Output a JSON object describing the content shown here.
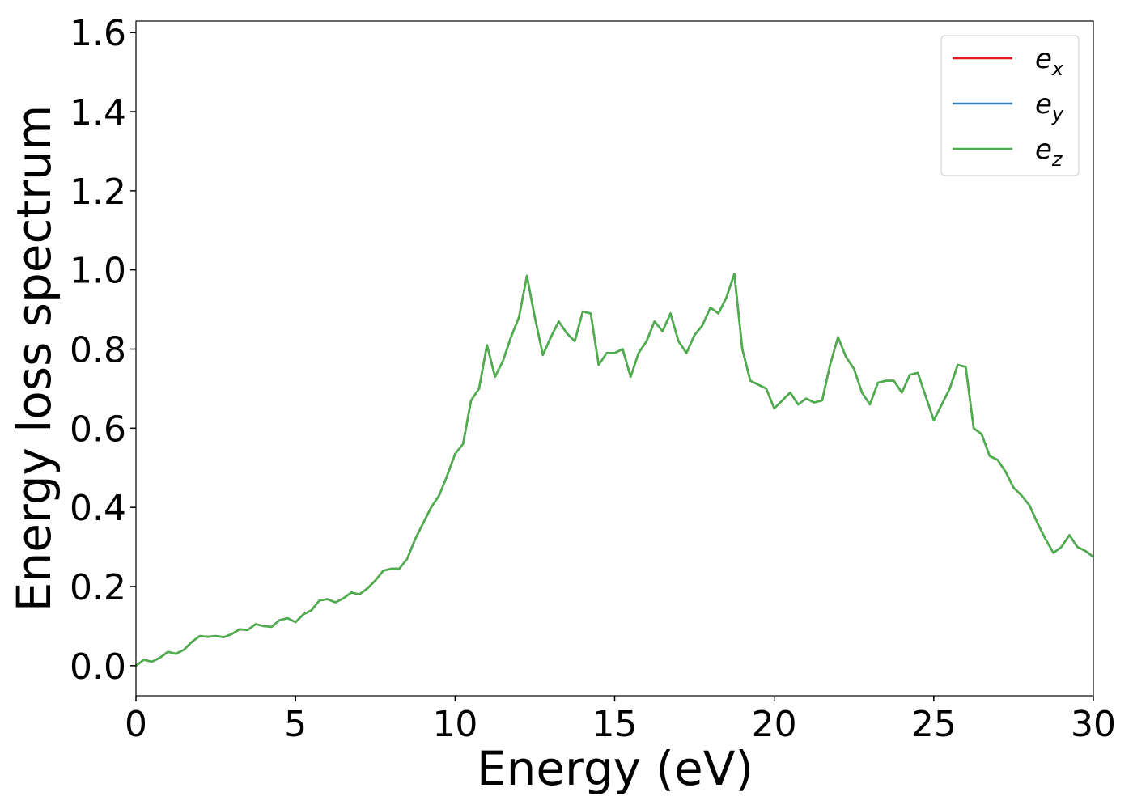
{
  "chart_data": {
    "type": "line",
    "xlabel": "Energy (eV)",
    "ylabel": "Energy loss spectrum",
    "xlim": [
      0,
      30
    ],
    "xticks": [
      0,
      5,
      10,
      15,
      20,
      25,
      30
    ],
    "ylim": [
      -0.076,
      1.629
    ],
    "yticks": [
      {
        "value": 0,
        "label": "0.0"
      },
      {
        "value": 0.2,
        "label": "0.2"
      },
      {
        "value": 0.4,
        "label": "0.4"
      },
      {
        "value": 0.6,
        "label": "0.6"
      },
      {
        "value": 0.8,
        "label": "0.8"
      },
      {
        "value": 1,
        "label": "1.0"
      },
      {
        "value": 1.2,
        "label": "1.2"
      },
      {
        "value": 1.4,
        "label": "1.4"
      },
      {
        "value": 1.6,
        "label": "1.6"
      }
    ],
    "legend": "upper right",
    "x": [
      0,
      0.25,
      0.5,
      0.75,
      1,
      1.25,
      1.5,
      1.75,
      2,
      2.25,
      2.5,
      2.75,
      3,
      3.25,
      3.5,
      3.75,
      4,
      4.25,
      4.5,
      4.75,
      5,
      5.25,
      5.5,
      5.75,
      6,
      6.25,
      6.5,
      6.75,
      7,
      7.25,
      7.5,
      7.75,
      8,
      8.25,
      8.5,
      8.75,
      9,
      9.25,
      9.5,
      9.75,
      10,
      10.25,
      10.5,
      10.75,
      11,
      11.25,
      11.5,
      11.75,
      12,
      12.25,
      12.5,
      12.75,
      13,
      13.25,
      13.5,
      13.75,
      14,
      14.25,
      14.5,
      14.75,
      15,
      15.25,
      15.5,
      15.75,
      16,
      16.25,
      16.5,
      16.75,
      17,
      17.25,
      17.5,
      17.75,
      18,
      18.25,
      18.5,
      18.75,
      19,
      19.25,
      19.5,
      19.75,
      20,
      20.25,
      20.5,
      20.75,
      21,
      21.25,
      21.5,
      21.75,
      22,
      22.25,
      22.5,
      22.75,
      23,
      23.25,
      23.5,
      23.75,
      24,
      24.25,
      24.5,
      24.75,
      25,
      25.25,
      25.5,
      25.75,
      26,
      26.25,
      26.5,
      26.75,
      27,
      27.25,
      27.5,
      27.75,
      28,
      28.25,
      28.5,
      28.75,
      29,
      29.25,
      29.5,
      29.75,
      30
    ],
    "series": [
      {
        "name": "ex",
        "color": "#e41a1c",
        "values": [
          0,
          0.015,
          0.01,
          0.02,
          0.035,
          0.03,
          0.04,
          0.06,
          0.075,
          0.073,
          0.075,
          0.072,
          0.08,
          0.092,
          0.09,
          0.105,
          0.1,
          0.098,
          0.115,
          0.12,
          0.11,
          0.13,
          0.14,
          0.165,
          0.168,
          0.16,
          0.17,
          0.185,
          0.18,
          0.195,
          0.215,
          0.24,
          0.245,
          0.245,
          0.27,
          0.32,
          0.36,
          0.4,
          0.43,
          0.48,
          0.535,
          0.56,
          0.67,
          0.7,
          0.81,
          0.73,
          0.77,
          0.83,
          0.88,
          0.985,
          0.88,
          0.785,
          0.83,
          0.87,
          0.84,
          0.82,
          0.895,
          0.89,
          0.76,
          0.79,
          0.79,
          0.8,
          0.73,
          0.79,
          0.82,
          0.87,
          0.845,
          0.89,
          0.82,
          0.79,
          0.835,
          0.86,
          0.905,
          0.89,
          0.93,
          0.99,
          0.8,
          0.72,
          0.71,
          0.7,
          0.65,
          0.67,
          0.69,
          0.66,
          0.675,
          0.665,
          0.67,
          0.76,
          0.83,
          0.78,
          0.75,
          0.69,
          0.66,
          0.715,
          0.72,
          0.72,
          0.69,
          0.735,
          0.74,
          0.68,
          0.62,
          0.66,
          0.7,
          0.76,
          0.755,
          0.6,
          0.585,
          0.53,
          0.52,
          0.49,
          0.45,
          0.43,
          0.405,
          0.36,
          0.32,
          0.285,
          0.3,
          0.33,
          0.3,
          0.29,
          0.275
        ]
      },
      {
        "name": "ey",
        "color": "#377eb8",
        "values": [
          0,
          0.015,
          0.01,
          0.02,
          0.035,
          0.03,
          0.04,
          0.06,
          0.075,
          0.073,
          0.075,
          0.072,
          0.08,
          0.092,
          0.09,
          0.105,
          0.1,
          0.098,
          0.115,
          0.12,
          0.11,
          0.13,
          0.14,
          0.165,
          0.168,
          0.16,
          0.17,
          0.185,
          0.18,
          0.195,
          0.215,
          0.24,
          0.245,
          0.245,
          0.27,
          0.32,
          0.36,
          0.4,
          0.43,
          0.48,
          0.535,
          0.56,
          0.67,
          0.7,
          0.81,
          0.73,
          0.77,
          0.83,
          0.88,
          0.985,
          0.88,
          0.785,
          0.83,
          0.87,
          0.84,
          0.82,
          0.895,
          0.89,
          0.76,
          0.79,
          0.79,
          0.8,
          0.73,
          0.79,
          0.82,
          0.87,
          0.845,
          0.89,
          0.82,
          0.79,
          0.835,
          0.86,
          0.905,
          0.89,
          0.93,
          0.99,
          0.8,
          0.72,
          0.71,
          0.7,
          0.65,
          0.67,
          0.69,
          0.66,
          0.675,
          0.665,
          0.67,
          0.76,
          0.83,
          0.78,
          0.75,
          0.69,
          0.66,
          0.715,
          0.72,
          0.72,
          0.69,
          0.735,
          0.74,
          0.68,
          0.62,
          0.66,
          0.7,
          0.76,
          0.755,
          0.6,
          0.585,
          0.53,
          0.52,
          0.49,
          0.45,
          0.43,
          0.405,
          0.36,
          0.32,
          0.285,
          0.3,
          0.33,
          0.3,
          0.29,
          0.275
        ]
      },
      {
        "name": "ez",
        "color": "#4daf4a",
        "values": [
          0,
          0.015,
          0.01,
          0.02,
          0.035,
          0.03,
          0.04,
          0.06,
          0.075,
          0.073,
          0.075,
          0.072,
          0.08,
          0.092,
          0.09,
          0.105,
          0.1,
          0.098,
          0.115,
          0.12,
          0.11,
          0.13,
          0.14,
          0.165,
          0.168,
          0.16,
          0.17,
          0.185,
          0.18,
          0.195,
          0.215,
          0.24,
          0.245,
          0.245,
          0.27,
          0.32,
          0.36,
          0.4,
          0.43,
          0.48,
          0.535,
          0.56,
          0.67,
          0.7,
          0.81,
          0.73,
          0.77,
          0.83,
          0.88,
          0.985,
          0.88,
          0.785,
          0.83,
          0.87,
          0.84,
          0.82,
          0.895,
          0.89,
          0.76,
          0.79,
          0.79,
          0.8,
          0.73,
          0.79,
          0.82,
          0.87,
          0.845,
          0.89,
          0.82,
          0.79,
          0.835,
          0.86,
          0.905,
          0.89,
          0.93,
          0.99,
          0.8,
          0.72,
          0.71,
          0.7,
          0.65,
          0.67,
          0.69,
          0.66,
          0.675,
          0.665,
          0.67,
          0.76,
          0.83,
          0.78,
          0.75,
          0.69,
          0.66,
          0.715,
          0.72,
          0.72,
          0.69,
          0.735,
          0.74,
          0.68,
          0.62,
          0.66,
          0.7,
          0.76,
          0.755,
          0.6,
          0.585,
          0.53,
          0.52,
          0.49,
          0.45,
          0.43,
          0.405,
          0.36,
          0.32,
          0.285,
          0.3,
          0.33,
          0.3,
          0.29,
          0.275
        ]
      }
    ]
  }
}
